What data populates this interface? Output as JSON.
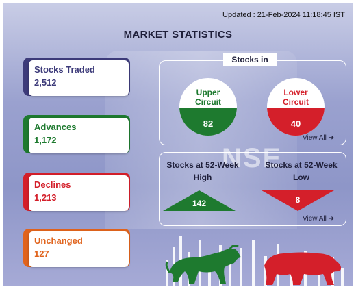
{
  "header": {
    "updated": "Updated : 21-Feb-2024 11:18:45 IST",
    "title": "MARKET STATISTICS",
    "background_text": "NSE"
  },
  "stats": [
    {
      "label": "Stocks Traded",
      "value": "2,512",
      "color": "#3d3b7a"
    },
    {
      "label": "Advances",
      "value": "1,172",
      "color": "#1e7a2f"
    },
    {
      "label": "Declines",
      "value": "1,213",
      "color": "#d41f2a"
    },
    {
      "label": "Unchanged",
      "value": "127",
      "color": "#e0631c"
    }
  ],
  "stocks_in": {
    "heading": "Stocks in",
    "upper": {
      "title_line1": "Upper",
      "title_line2": "Circuit",
      "value": "82",
      "color": "#1e7a2f"
    },
    "lower": {
      "title_line1": "Lower",
      "title_line2": "Circuit",
      "value": "40",
      "color": "#d41f2a"
    },
    "view_all": "View All ➔"
  },
  "week52": {
    "high_line1": "Stocks at 52-Week",
    "high_line2": "High",
    "high_value": "142",
    "low_line1": "Stocks at 52-Week",
    "low_line2": "Low",
    "low_value": "8",
    "view_all": "View All ➔",
    "high_color": "#1e7a2f",
    "low_color": "#d41f2a"
  },
  "icons": {
    "bull": "bull-icon",
    "bear": "bear-icon"
  }
}
